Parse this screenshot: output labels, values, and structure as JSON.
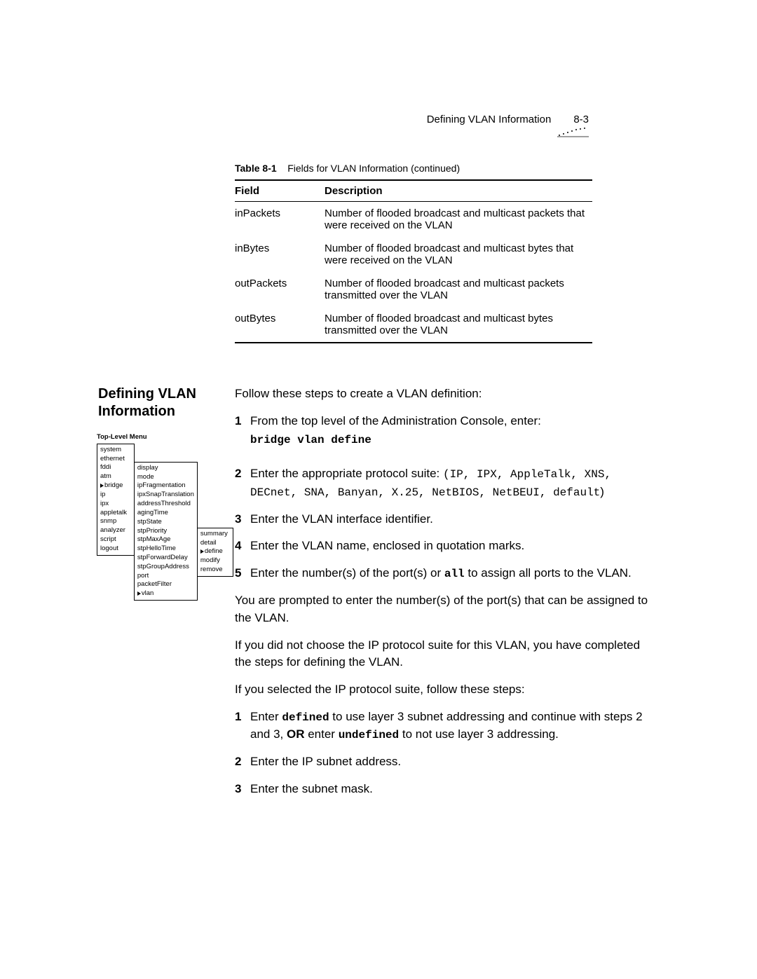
{
  "header": {
    "title": "Defining VLAN Information",
    "page_number": "8-3"
  },
  "table": {
    "caption_label": "Table 8-1",
    "caption_text": "Fields for VLAN Information  (continued)",
    "columns": [
      "Field",
      "Description"
    ],
    "rows": [
      [
        "inPackets",
        "Number of flooded broadcast and multicast packets that were received on the VLAN"
      ],
      [
        "inBytes",
        "Number of flooded broadcast and multicast bytes that were received on the VLAN"
      ],
      [
        "outPackets",
        "Number of flooded broadcast and multicast packets transmitted over the VLAN"
      ],
      [
        "outBytes",
        "Number of flooded broadcast and multicast bytes transmitted over the VLAN"
      ]
    ]
  },
  "section": {
    "title_line1": "Defining VLAN",
    "title_line2": "Information",
    "intro": "Follow these steps to create a VLAN definition:",
    "step1_text": "From the top level of the Administration Console, enter:",
    "step1_cmd": "bridge vlan define",
    "step2_prefix": "Enter the appropriate protocol suite: ",
    "step2_mono1": "(IP, IPX, AppleTalk, XNS,",
    "step2_mono2": "DECnet, SNA, Banyan, X.25, NetBIOS, NetBEUI, default",
    "step2_close": ")",
    "step3": "Enter the VLAN interface identifier.",
    "step4": "Enter the VLAN name, enclosed in quotation marks.",
    "step5_prefix": "Enter the number(s) of the port(s) or ",
    "step5_code": "all",
    "step5_suffix": " to assign all ports to the VLAN.",
    "para1": "You are prompted to enter the number(s) of the port(s) that can be assigned to the VLAN.",
    "para2": "If you did not choose the IP protocol suite for this VLAN, you have completed the steps for defining the VLAN.",
    "para3": "If you selected the IP protocol suite, follow these steps:",
    "ip1_a": "Enter ",
    "ip1_code1": "defined",
    "ip1_b": " to use layer 3 subnet addressing and continue with steps 2 and 3, ",
    "ip1_or": "OR",
    "ip1_c": " enter ",
    "ip1_code2": "undefined",
    "ip1_d": " to not use layer 3 addressing.",
    "ip2": "Enter the IP subnet address.",
    "ip3": "Enter the subnet mask."
  },
  "menu": {
    "title": "Top-Level Menu",
    "col1": [
      "system",
      "ethernet",
      "fddi",
      "atm",
      "bridge",
      "ip",
      "ipx",
      "appletalk",
      "snmp",
      "analyzer",
      "script",
      "logout"
    ],
    "col1_arrow_index": 4,
    "col2": [
      "display",
      "mode",
      "ipFragmentation",
      "ipxSnapTranslation",
      "addressThreshold",
      "agingTime",
      "stpState",
      "stpPriority",
      "stpMaxAge",
      "stpHelloTime",
      "stpForwardDelay",
      "stpGroupAddress",
      "port",
      "packetFilter",
      "vlan"
    ],
    "col2_arrow_index": 14,
    "col3": [
      "summary",
      "detail",
      "define",
      "modify",
      "remove"
    ],
    "col3_arrow_index": 2
  },
  "nums": {
    "n1": "1",
    "n2": "2",
    "n3": "3",
    "n4": "4",
    "n5": "5"
  }
}
